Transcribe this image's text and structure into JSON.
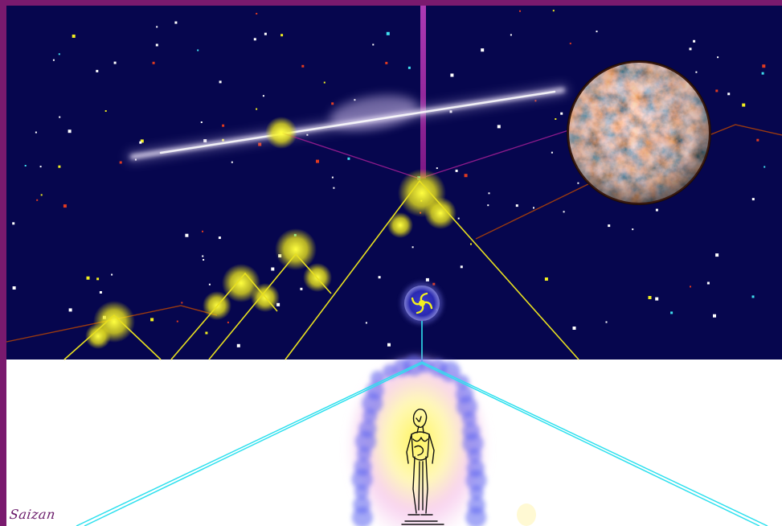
{
  "artwork": {
    "signature": "Saizan"
  },
  "colors": {
    "frame_purple": "#7a1a6e",
    "night_sky": "#06064e",
    "ground_white": "#ffffff",
    "glow_yellow": "#f2ef20",
    "line_yellow": "#e8e020",
    "line_cyan": "#2fe0ee",
    "line_purple": "#8a1a8a",
    "line_brown": "#9a3a10",
    "aura_blue": "#5a62f0",
    "aura_pink": "#f4c0e8",
    "planet_orange": "#c8461a",
    "planet_teal": "#2f6a6a"
  }
}
